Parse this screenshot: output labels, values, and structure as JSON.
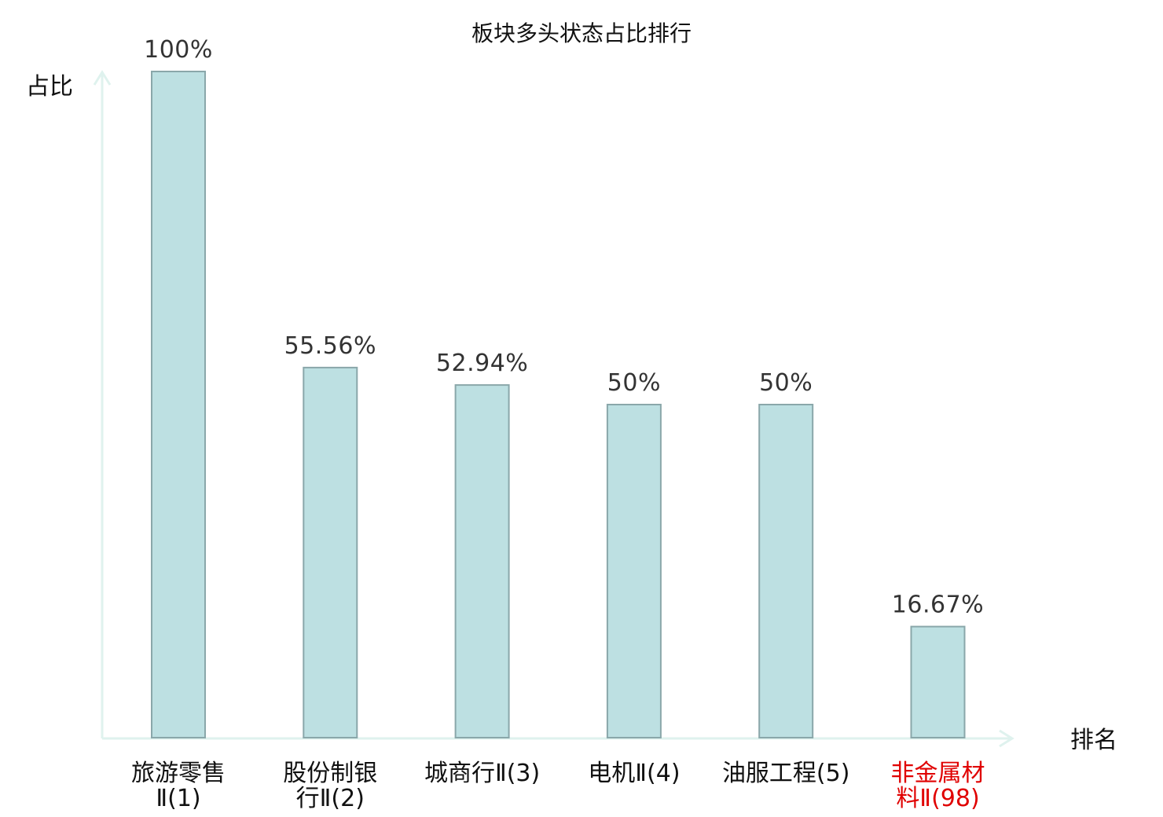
{
  "chart_data": {
    "type": "bar",
    "title": "板块多头状态占比排行",
    "ylabel": "占比",
    "xlabel": "排名",
    "ylim": [
      0,
      100
    ],
    "grid": false,
    "legend": "none",
    "categories": [
      {
        "name_lines": [
          "旅游零售",
          "Ⅱ(1)"
        ]
      },
      {
        "name_lines": [
          "股份制银",
          "行Ⅱ(2)"
        ]
      },
      {
        "name_lines": [
          "城商行Ⅱ(3)"
        ]
      },
      {
        "name_lines": [
          "电机Ⅱ(4)"
        ]
      },
      {
        "name_lines": [
          "油服工程(5)"
        ]
      },
      {
        "name_lines": [
          "非金属材",
          "料Ⅱ(98)"
        ],
        "highlight": true
      }
    ],
    "values": [
      100,
      55.56,
      52.94,
      50,
      50,
      16.67
    ],
    "value_labels": [
      "100%",
      "55.56%",
      "52.94%",
      "50%",
      "50%",
      "16.67%"
    ],
    "colors": {
      "bar_fill": "#bde0e2",
      "bar_stroke": "#8aa7aa",
      "axis": "#dff2ee",
      "highlight": "#e00000"
    }
  }
}
